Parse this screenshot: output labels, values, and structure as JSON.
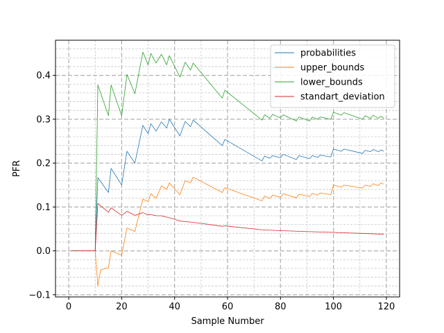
{
  "chart_data": {
    "type": "line",
    "title": "",
    "xlabel": "Sample Number",
    "ylabel": "PFR",
    "xlim": [
      -5,
      125
    ],
    "ylim": [
      -0.105,
      0.48
    ],
    "x_ticks": [
      0,
      20,
      40,
      60,
      80,
      100,
      120
    ],
    "y_ticks": [
      -0.1,
      0.0,
      0.1,
      0.2,
      0.3,
      0.4
    ],
    "y_tick_labels": [
      "−0.1",
      "0.0",
      "0.1",
      "0.2",
      "0.3",
      "0.4"
    ],
    "grid": {
      "major": true,
      "minor": true,
      "style": "dashed"
    },
    "legend_position": "top-right",
    "series": [
      {
        "name": "probabilities",
        "color": "#1f77b4",
        "points": [
          [
            1,
            0
          ],
          [
            10,
            0
          ],
          [
            11,
            0.167
          ],
          [
            15,
            0.133
          ],
          [
            16,
            0.188
          ],
          [
            20,
            0.15
          ],
          [
            22,
            0.227
          ],
          [
            25,
            0.2
          ],
          [
            28,
            0.286
          ],
          [
            30,
            0.267
          ],
          [
            31,
            0.29
          ],
          [
            33,
            0.273
          ],
          [
            35,
            0.294
          ],
          [
            37,
            0.28
          ],
          [
            38,
            0.3
          ],
          [
            42,
            0.262
          ],
          [
            44,
            0.295
          ],
          [
            46,
            0.283
          ],
          [
            47,
            0.298
          ],
          [
            58,
            0.24
          ],
          [
            59,
            0.254
          ],
          [
            73,
            0.205
          ],
          [
            74,
            0.216
          ],
          [
            76,
            0.211
          ],
          [
            77,
            0.217
          ],
          [
            80,
            0.212
          ],
          [
            81,
            0.22
          ],
          [
            86,
            0.208
          ],
          [
            87,
            0.217
          ],
          [
            91,
            0.21
          ],
          [
            92,
            0.217
          ],
          [
            94,
            0.213
          ],
          [
            95,
            0.218
          ],
          [
            99,
            0.214
          ],
          [
            100,
            0.232
          ],
          [
            103,
            0.227
          ],
          [
            104,
            0.232
          ],
          [
            111,
            0.222
          ],
          [
            112,
            0.229
          ],
          [
            114,
            0.226
          ],
          [
            115,
            0.231
          ],
          [
            117,
            0.226
          ],
          [
            118,
            0.23
          ],
          [
            119,
            0.227
          ]
        ]
      },
      {
        "name": "upper_bounds",
        "color": "#ff7f0e",
        "points": [
          [
            1,
            0
          ],
          [
            10,
            0
          ],
          [
            11,
            -0.08
          ],
          [
            12,
            -0.044
          ],
          [
            15,
            -0.038
          ],
          [
            16,
            0
          ],
          [
            20,
            -0.01
          ],
          [
            22,
            0.052
          ],
          [
            25,
            0.044
          ],
          [
            28,
            0.118
          ],
          [
            30,
            0.112
          ],
          [
            31,
            0.13
          ],
          [
            33,
            0.12
          ],
          [
            35,
            0.148
          ],
          [
            37,
            0.14
          ],
          [
            38,
            0.155
          ],
          [
            42,
            0.128
          ],
          [
            44,
            0.16
          ],
          [
            46,
            0.155
          ],
          [
            47,
            0.168
          ],
          [
            58,
            0.133
          ],
          [
            59,
            0.144
          ],
          [
            73,
            0.114
          ],
          [
            74,
            0.125
          ],
          [
            76,
            0.119
          ],
          [
            77,
            0.127
          ],
          [
            80,
            0.122
          ],
          [
            81,
            0.13
          ],
          [
            86,
            0.121
          ],
          [
            87,
            0.129
          ],
          [
            91,
            0.124
          ],
          [
            92,
            0.131
          ],
          [
            94,
            0.127
          ],
          [
            95,
            0.132
          ],
          [
            99,
            0.128
          ],
          [
            100,
            0.15
          ],
          [
            103,
            0.145
          ],
          [
            104,
            0.15
          ],
          [
            111,
            0.143
          ],
          [
            112,
            0.15
          ],
          [
            114,
            0.147
          ],
          [
            115,
            0.153
          ],
          [
            117,
            0.149
          ],
          [
            118,
            0.155
          ],
          [
            119,
            0.152
          ]
        ]
      },
      {
        "name": "lower_bounds",
        "color": "#2ca02c",
        "points": [
          [
            1,
            0
          ],
          [
            10,
            0
          ],
          [
            11,
            0.378
          ],
          [
            15,
            0.308
          ],
          [
            16,
            0.378
          ],
          [
            20,
            0.308
          ],
          [
            22,
            0.402
          ],
          [
            25,
            0.358
          ],
          [
            28,
            0.453
          ],
          [
            30,
            0.424
          ],
          [
            31,
            0.45
          ],
          [
            33,
            0.428
          ],
          [
            35,
            0.448
          ],
          [
            37,
            0.424
          ],
          [
            38,
            0.445
          ],
          [
            42,
            0.396
          ],
          [
            44,
            0.43
          ],
          [
            46,
            0.412
          ],
          [
            47,
            0.428
          ],
          [
            58,
            0.348
          ],
          [
            59,
            0.366
          ],
          [
            73,
            0.298
          ],
          [
            74,
            0.31
          ],
          [
            76,
            0.302
          ],
          [
            77,
            0.311
          ],
          [
            80,
            0.303
          ],
          [
            81,
            0.31
          ],
          [
            86,
            0.296
          ],
          [
            87,
            0.305
          ],
          [
            91,
            0.296
          ],
          [
            92,
            0.305
          ],
          [
            94,
            0.3
          ],
          [
            95,
            0.305
          ],
          [
            99,
            0.3
          ],
          [
            100,
            0.316
          ],
          [
            103,
            0.309
          ],
          [
            104,
            0.315
          ],
          [
            111,
            0.3
          ],
          [
            112,
            0.308
          ],
          [
            114,
            0.302
          ],
          [
            115,
            0.309
          ],
          [
            117,
            0.302
          ],
          [
            118,
            0.307
          ],
          [
            119,
            0.302
          ]
        ]
      },
      {
        "name": "standart_deviation",
        "color": "#d62728",
        "points": [
          [
            1,
            0
          ],
          [
            10,
            0
          ],
          [
            11,
            0.108
          ],
          [
            15,
            0.088
          ],
          [
            16,
            0.098
          ],
          [
            20,
            0.081
          ],
          [
            22,
            0.09
          ],
          [
            25,
            0.081
          ],
          [
            28,
            0.087
          ],
          [
            30,
            0.082
          ],
          [
            31,
            0.083
          ],
          [
            33,
            0.08
          ],
          [
            35,
            0.08
          ],
          [
            40,
            0.072
          ],
          [
            42,
            0.068
          ],
          [
            47,
            0.065
          ],
          [
            58,
            0.056
          ],
          [
            59,
            0.057
          ],
          [
            73,
            0.048
          ],
          [
            80,
            0.046
          ],
          [
            90,
            0.044
          ],
          [
            100,
            0.042
          ],
          [
            110,
            0.04
          ],
          [
            119,
            0.038
          ]
        ]
      }
    ]
  }
}
